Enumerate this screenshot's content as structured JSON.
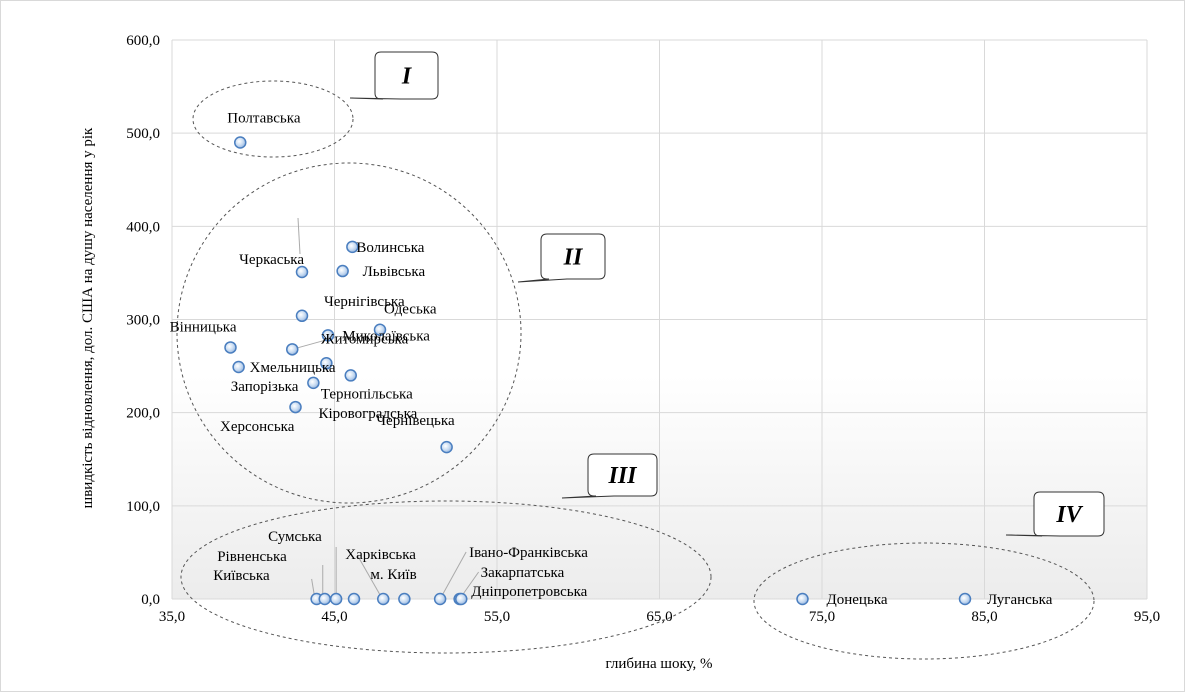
{
  "chart_data": {
    "type": "scatter",
    "xlabel": "глибина шоку, %",
    "ylabel": "швидкість відновлення, дол. США на душу населення у рік",
    "xlim": [
      35,
      95
    ],
    "ylim": [
      0,
      600
    ],
    "x_ticks": [
      "35,0",
      "45,0",
      "55,0",
      "65,0",
      "75,0",
      "85,0",
      "95,0"
    ],
    "y_ticks": [
      "0,0",
      "100,0",
      "200,0",
      "300,0",
      "400,0",
      "500,0",
      "600,0"
    ],
    "grid": true,
    "points": [
      {
        "label": "Полтавська",
        "x": 39.2,
        "y": 490
      },
      {
        "label": "Волинська",
        "x": 46.1,
        "y": 378
      },
      {
        "label": "Львівська",
        "x": 45.5,
        "y": 352
      },
      {
        "label": "Черкаська",
        "x": 43.0,
        "y": 351
      },
      {
        "label": "Чернігівська",
        "x": 43.0,
        "y": 304
      },
      {
        "label": "Одеська",
        "x": 47.8,
        "y": 289
      },
      {
        "label": "Житомирська",
        "x": 44.6,
        "y": 283
      },
      {
        "label": "Вінницька",
        "x": 38.6,
        "y": 270
      },
      {
        "label": "Миколаївська",
        "x": 42.4,
        "y": 268
      },
      {
        "label": "Хмельницька",
        "x": 39.1,
        "y": 249
      },
      {
        "label": "",
        "x": 44.5,
        "y": 253
      },
      {
        "label": "Тернопільська",
        "x": 46.0,
        "y": 240
      },
      {
        "label": "Запорізька",
        "x": 43.7,
        "y": 232
      },
      {
        "label": "Кіровоградська",
        "x": 42.6,
        "y": 206
      },
      {
        "label": "Чернівецька",
        "x": 51.9,
        "y": 163
      },
      {
        "label": "Київська",
        "x": 43.9,
        "y": 0
      },
      {
        "label": "Рівненська",
        "x": 44.4,
        "y": 0
      },
      {
        "label": "Сумська",
        "x": 45.1,
        "y": 0
      },
      {
        "label": "Херсонська",
        "x": 46.2,
        "y": 0
      },
      {
        "label": "Харківська",
        "x": 48.0,
        "y": 0
      },
      {
        "label": "м. Київ",
        "x": 49.3,
        "y": 0
      },
      {
        "label": "Івано-Франківська",
        "x": 51.5,
        "y": 0
      },
      {
        "label": "Закарпатська",
        "x": 52.7,
        "y": 0
      },
      {
        "label": "Дніпропетровська",
        "x": 52.8,
        "y": 0
      },
      {
        "label": "Донецька",
        "x": 73.8,
        "y": 0
      },
      {
        "label": "Луганська",
        "x": 83.8,
        "y": 0
      }
    ],
    "groups": [
      "I",
      "II",
      "III",
      "IV"
    ]
  }
}
